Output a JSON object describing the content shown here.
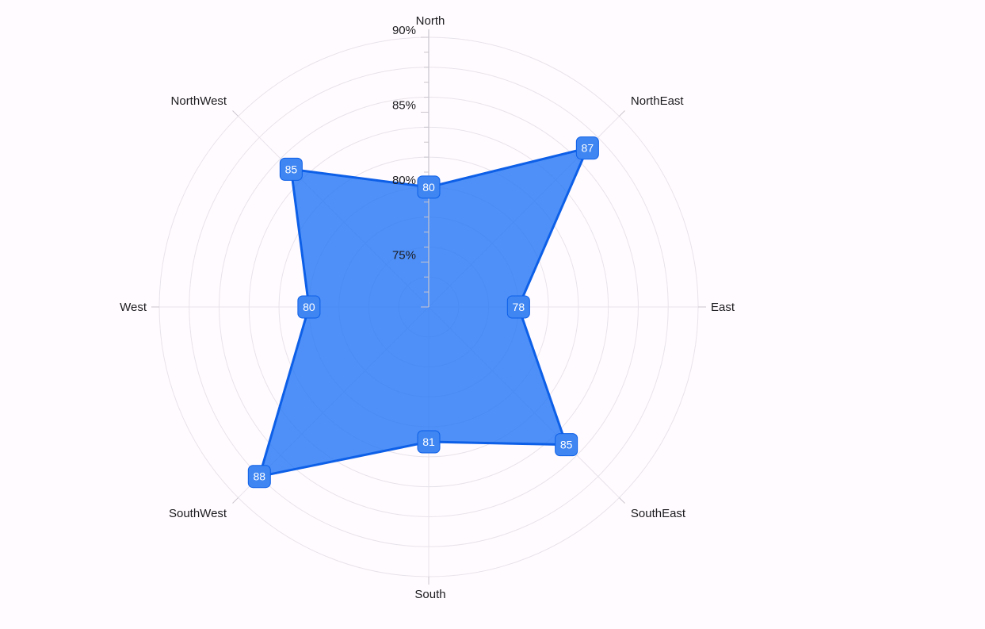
{
  "colors": {
    "background": "#FFFBFE",
    "grid": "#E7E3EB",
    "axis": "#C9C5CE",
    "label_text": "#1C1B1F",
    "series_fill": "#2F7CF6",
    "series_stroke": "#0D5FE8",
    "marker_fill": "#3F86F2",
    "marker_text": "#FFFFFF"
  },
  "chart_data": {
    "type": "polar-area",
    "title": "",
    "angular_axis": {
      "categories": [
        "North",
        "NorthEast",
        "East",
        "SouthEast",
        "South",
        "SouthWest",
        "West",
        "NorthWest"
      ]
    },
    "radial_axis": {
      "min": 72,
      "max": 90,
      "major_ticks": [
        75,
        80,
        85,
        90
      ],
      "tick_labels": [
        "75%",
        "80%",
        "85%",
        "90%"
      ],
      "minor_step": 1,
      "grid_step": 2
    },
    "grid": true,
    "legend": "none",
    "series": [
      {
        "values": [
          80,
          87,
          78,
          85,
          81,
          88,
          80,
          85
        ],
        "data_labels": [
          "80",
          "87",
          "78",
          "85",
          "81",
          "88",
          "80",
          "85"
        ]
      }
    ]
  }
}
